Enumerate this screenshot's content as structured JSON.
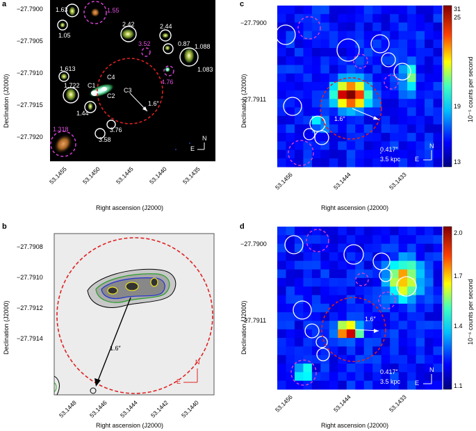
{
  "panels": {
    "a": {
      "label": "a",
      "ylabel": "Declination (J2000)",
      "xlabel": "Right ascension (J2000)",
      "yticks": [
        "−27.7900",
        "−27.7905",
        "−27.7910",
        "−27.7915",
        "−27.7920"
      ],
      "xticks": [
        "53.1455",
        "53.1450",
        "53.1445",
        "53.1440",
        "53.1435"
      ],
      "labels_white": [
        "1.63",
        "1.05",
        "2.42",
        "2.44",
        "0.87",
        "1.088",
        "1.083",
        "1.613",
        "1.722",
        "1.44",
        "3.76",
        "3.58",
        "C1",
        "C4",
        "C3",
        "C2",
        "1.6″"
      ],
      "labels_magenta": [
        "1.55",
        "3.52",
        "4.76",
        "1.318"
      ],
      "compass_n": "N",
      "compass_e": "E"
    },
    "b": {
      "label": "b",
      "ylabel": "Declination (J2000)",
      "xlabel": "Right ascension (J2000)",
      "yticks": [
        "−27.7908",
        "−27.7910",
        "−27.7912",
        "−27.7914"
      ],
      "xticks": [
        "53.1448",
        "53.1446",
        "53.1444",
        "53.1442",
        "53.1440"
      ],
      "arrow_label": "1.6″",
      "compass_n": "N",
      "compass_e": "E"
    },
    "c": {
      "label": "c",
      "ylabel": "Declination (J2000)",
      "xlabel": "Right ascension (J2000)",
      "yticks": [
        "−27.7900",
        "−27.7911"
      ],
      "xticks": [
        "53.1456",
        "53.1444",
        "53.1433"
      ],
      "arrow_label": "1.6″",
      "scale_top": "0.417″",
      "scale_bottom": "3.5 kpc",
      "compass_n": "N",
      "compass_e": "E",
      "colorbar_label": "10⁻⁵ counts per second",
      "colorbar_ticks": [
        "31",
        "25",
        "19",
        "13"
      ]
    },
    "d": {
      "label": "d",
      "ylabel": "Declination (J2000)",
      "xlabel": "Right ascension (J2000)",
      "yticks": [
        "−27.7900",
        "−27.7911"
      ],
      "xticks": [
        "53.1456",
        "53.1444",
        "53.1433"
      ],
      "arrow_label": "1.6″",
      "scale_top": "0.417″",
      "scale_bottom": "3.5 kpc",
      "compass_n": "N",
      "compass_e": "E",
      "colorbar_label": "10⁻⁶ counts per second",
      "colorbar_ticks": [
        "2.0",
        "1.7",
        "1.4",
        "1.1"
      ]
    }
  },
  "colors": {
    "circle_white": "#ffffff",
    "circle_magenta": "#d040d0",
    "circle_red": "#e02020",
    "bg_blue": "#00007e"
  }
}
